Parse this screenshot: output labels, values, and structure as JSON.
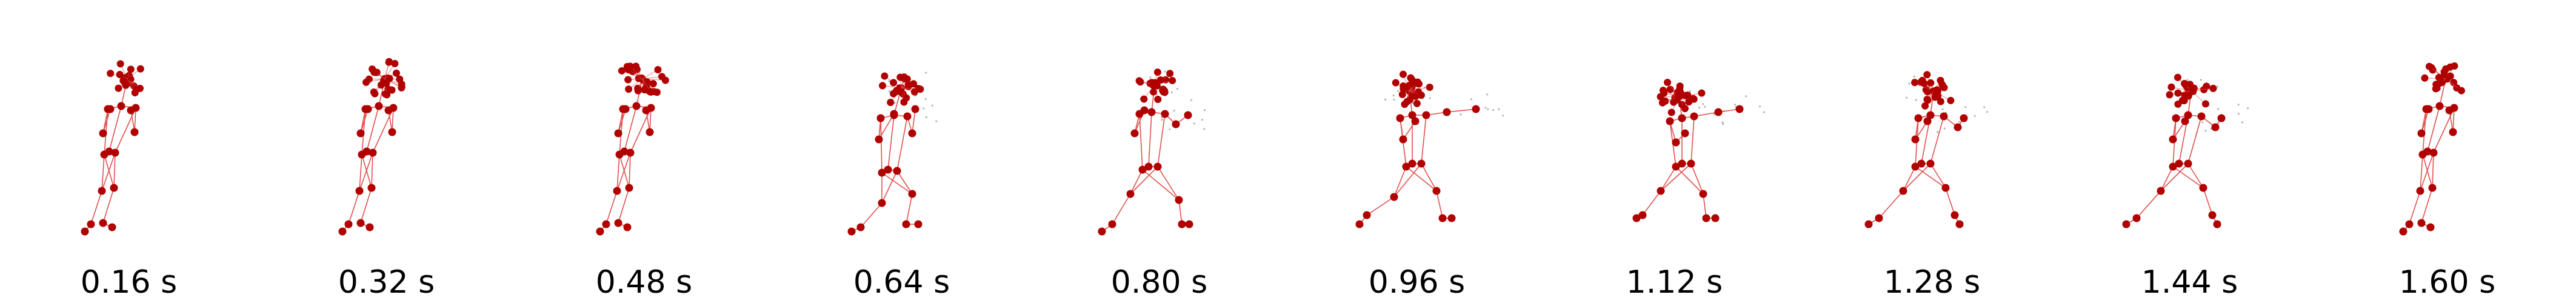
{
  "figure": {
    "frames": [
      {
        "label": "0.16 s",
        "pose": "stand"
      },
      {
        "label": "0.32 s",
        "pose": "stand"
      },
      {
        "label": "0.48 s",
        "pose": "stand"
      },
      {
        "label": "0.64 s",
        "pose": "crouch"
      },
      {
        "label": "0.80 s",
        "pose": "lunge"
      },
      {
        "label": "0.96 s",
        "pose": "punch"
      },
      {
        "label": "1.12 s",
        "pose": "extend"
      },
      {
        "label": "1.28 s",
        "pose": "recover"
      },
      {
        "label": "1.44 s",
        "pose": "recover"
      },
      {
        "label": "1.60 s",
        "pose": "stand"
      }
    ],
    "colors": {
      "joint": "#b00000",
      "bone": "#e05050",
      "ghost": "#7a8a8a"
    }
  }
}
